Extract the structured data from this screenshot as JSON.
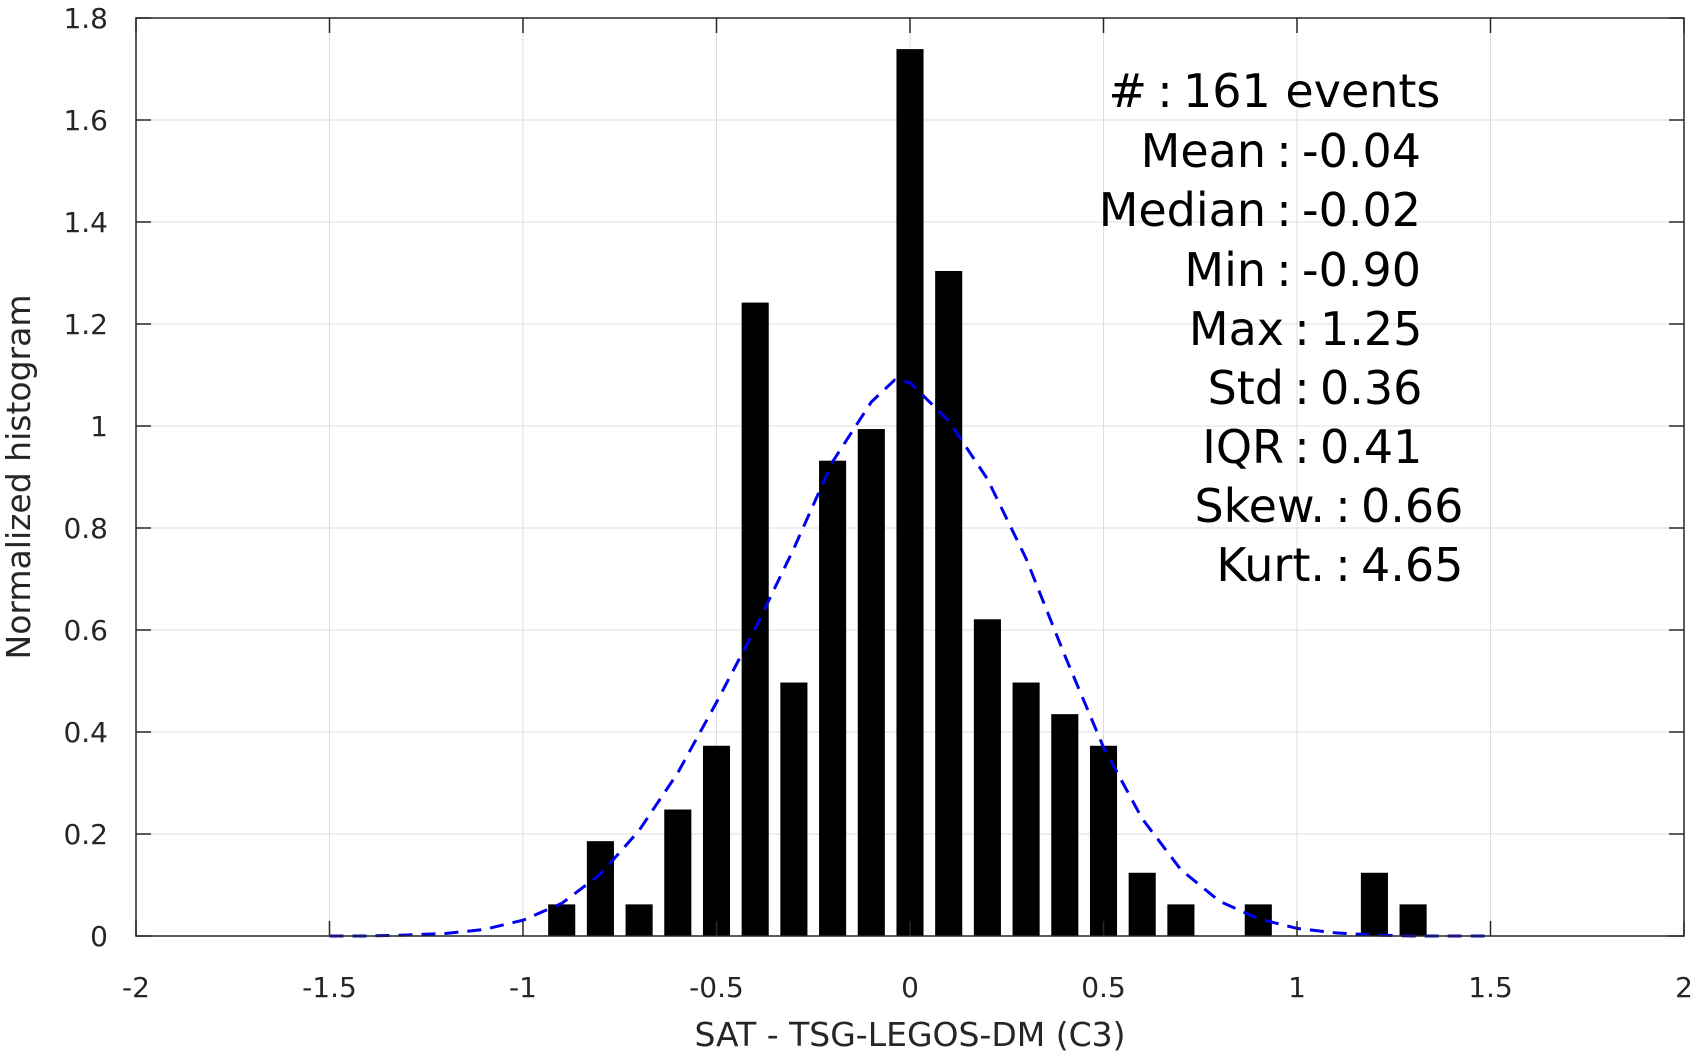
{
  "chart_data": {
    "type": "bar",
    "xlabel": "SAT - TSG-LEGOS-DM (C3)",
    "ylabel": "Normalized histogram",
    "xlim": [
      -2,
      2
    ],
    "ylim": [
      0,
      1.8
    ],
    "xticks": [
      -2,
      -1.5,
      -1,
      -0.5,
      0,
      0.5,
      1,
      1.5,
      2
    ],
    "xtick_labels": [
      "-2",
      "-1.5",
      "-1",
      "-0.5",
      "0",
      "0.5",
      "1",
      "1.5",
      "2"
    ],
    "yticks": [
      0,
      0.2,
      0.4,
      0.6,
      0.8,
      1,
      1.2,
      1.4,
      1.6,
      1.8
    ],
    "ytick_labels": [
      "0",
      "0.2",
      "0.4",
      "0.6",
      "0.8",
      "1",
      "1.2",
      "1.4",
      "1.6",
      "1.8"
    ],
    "grid": true,
    "bar_color": "#000000",
    "bar_width": 0.07,
    "series": [
      {
        "type": "bar",
        "x": [
          -0.9,
          -0.8,
          -0.7,
          -0.6,
          -0.5,
          -0.4,
          -0.3,
          -0.2,
          -0.1,
          0.0,
          0.1,
          0.2,
          0.3,
          0.4,
          0.5,
          0.6,
          0.7,
          0.9,
          1.2,
          1.3
        ],
        "values": [
          0.062,
          0.186,
          0.062,
          0.248,
          0.373,
          1.242,
          0.497,
          0.932,
          0.994,
          1.739,
          1.304,
          0.621,
          0.497,
          0.435,
          0.373,
          0.124,
          0.062,
          0.062,
          0.124,
          0.062
        ]
      },
      {
        "type": "line",
        "style": "dashed",
        "color": "#0000ee",
        "x": [
          -1.5,
          -1.4,
          -1.3,
          -1.2,
          -1.1,
          -1.0,
          -0.9,
          -0.8,
          -0.7,
          -0.6,
          -0.5,
          -0.4,
          -0.3,
          -0.2,
          -0.1,
          -0.04,
          0.0,
          0.1,
          0.2,
          0.3,
          0.4,
          0.5,
          0.6,
          0.7,
          0.8,
          0.9,
          1.0,
          1.1,
          1.2,
          1.3,
          1.4,
          1.5
        ],
        "values": [
          0.0,
          0.0,
          0.002,
          0.005,
          0.013,
          0.031,
          0.064,
          0.121,
          0.207,
          0.32,
          0.458,
          0.603,
          0.76,
          0.93,
          1.047,
          1.09,
          1.085,
          1.01,
          0.896,
          0.74,
          0.55,
          0.37,
          0.23,
          0.13,
          0.068,
          0.034,
          0.015,
          0.006,
          0.002,
          0.0,
          0.0,
          0.0
        ]
      }
    ],
    "annotations": [
      {
        "key": "#",
        "sep": ":",
        "value": "161 events"
      },
      {
        "key": "Mean",
        "sep": ":",
        "value": "-0.04"
      },
      {
        "key": "Median",
        "sep": ":",
        "value": "-0.02"
      },
      {
        "key": "Min",
        "sep": ":",
        "value": "-0.90"
      },
      {
        "key": "Max",
        "sep": ":",
        "value": "1.25"
      },
      {
        "key": "Std",
        "sep": ":",
        "value": "0.36"
      },
      {
        "key": "IQR",
        "sep": ":",
        "value": "0.41"
      },
      {
        "key": "Skew.",
        "sep": ":",
        "value": "0.66"
      },
      {
        "key": "Kurt.",
        "sep": ":",
        "value": "4.65"
      }
    ]
  }
}
